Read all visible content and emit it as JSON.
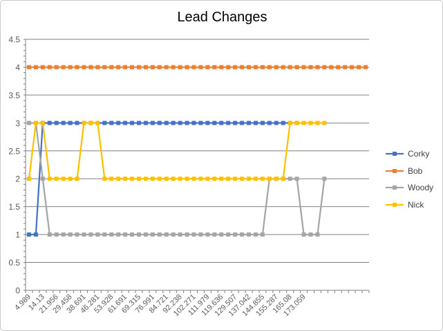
{
  "chart_data": {
    "type": "line",
    "title": "Lead Changes",
    "xlabel": "",
    "ylabel": "",
    "ylim": [
      0,
      4.5
    ],
    "yticks": [
      "0",
      "0.5",
      "1",
      "1.5",
      "2",
      "2.5",
      "3",
      "3.5",
      "4",
      "4.5"
    ],
    "x_tick_labels": [
      "4.989",
      "14.13",
      "21.956",
      "29.458",
      "38.691",
      "46.281",
      "53.928",
      "61.691",
      "69.315",
      "76.991",
      "84.721",
      "92.238",
      "102.271",
      "111.979",
      "119.636",
      "129.507",
      "137.042",
      "144.855",
      "155.287",
      "165.08",
      "173.059"
    ],
    "n_categories": 50,
    "grid": true,
    "legend_position": "right",
    "series": [
      {
        "name": "Corky",
        "color": "#4472C4",
        "values": [
          1,
          1,
          3,
          3,
          3,
          3,
          3,
          3,
          3,
          3,
          3,
          3,
          3,
          3,
          3,
          3,
          3,
          3,
          3,
          3,
          3,
          3,
          3,
          3,
          3,
          3,
          3,
          3,
          3,
          3,
          3,
          3,
          3,
          3,
          3,
          3,
          3,
          3,
          3,
          3
        ]
      },
      {
        "name": "Bob",
        "color": "#ED7D31",
        "values": [
          4,
          4,
          4,
          4,
          4,
          4,
          4,
          4,
          4,
          4,
          4,
          4,
          4,
          4,
          4,
          4,
          4,
          4,
          4,
          4,
          4,
          4,
          4,
          4,
          4,
          4,
          4,
          4,
          4,
          4,
          4,
          4,
          4,
          4,
          4,
          4,
          4,
          4,
          4,
          4,
          4,
          4,
          4,
          4,
          4,
          4,
          4,
          4,
          4,
          4
        ]
      },
      {
        "name": "Woody",
        "color": "#A5A5A5",
        "values": [
          3,
          3,
          2,
          1,
          1,
          1,
          1,
          1,
          1,
          1,
          1,
          1,
          1,
          1,
          1,
          1,
          1,
          1,
          1,
          1,
          1,
          1,
          1,
          1,
          1,
          1,
          1,
          1,
          1,
          1,
          1,
          1,
          1,
          1,
          1,
          2,
          2,
          2,
          2,
          2,
          1,
          1,
          1,
          2
        ]
      },
      {
        "name": "Nick",
        "color": "#FFC000",
        "values": [
          2,
          3,
          3,
          2,
          2,
          2,
          2,
          2,
          3,
          3,
          3,
          2,
          2,
          2,
          2,
          2,
          2,
          2,
          2,
          2,
          2,
          2,
          2,
          2,
          2,
          2,
          2,
          2,
          2,
          2,
          2,
          2,
          2,
          2,
          2,
          2,
          2,
          2,
          3,
          3,
          3,
          3,
          3,
          3
        ]
      }
    ]
  }
}
